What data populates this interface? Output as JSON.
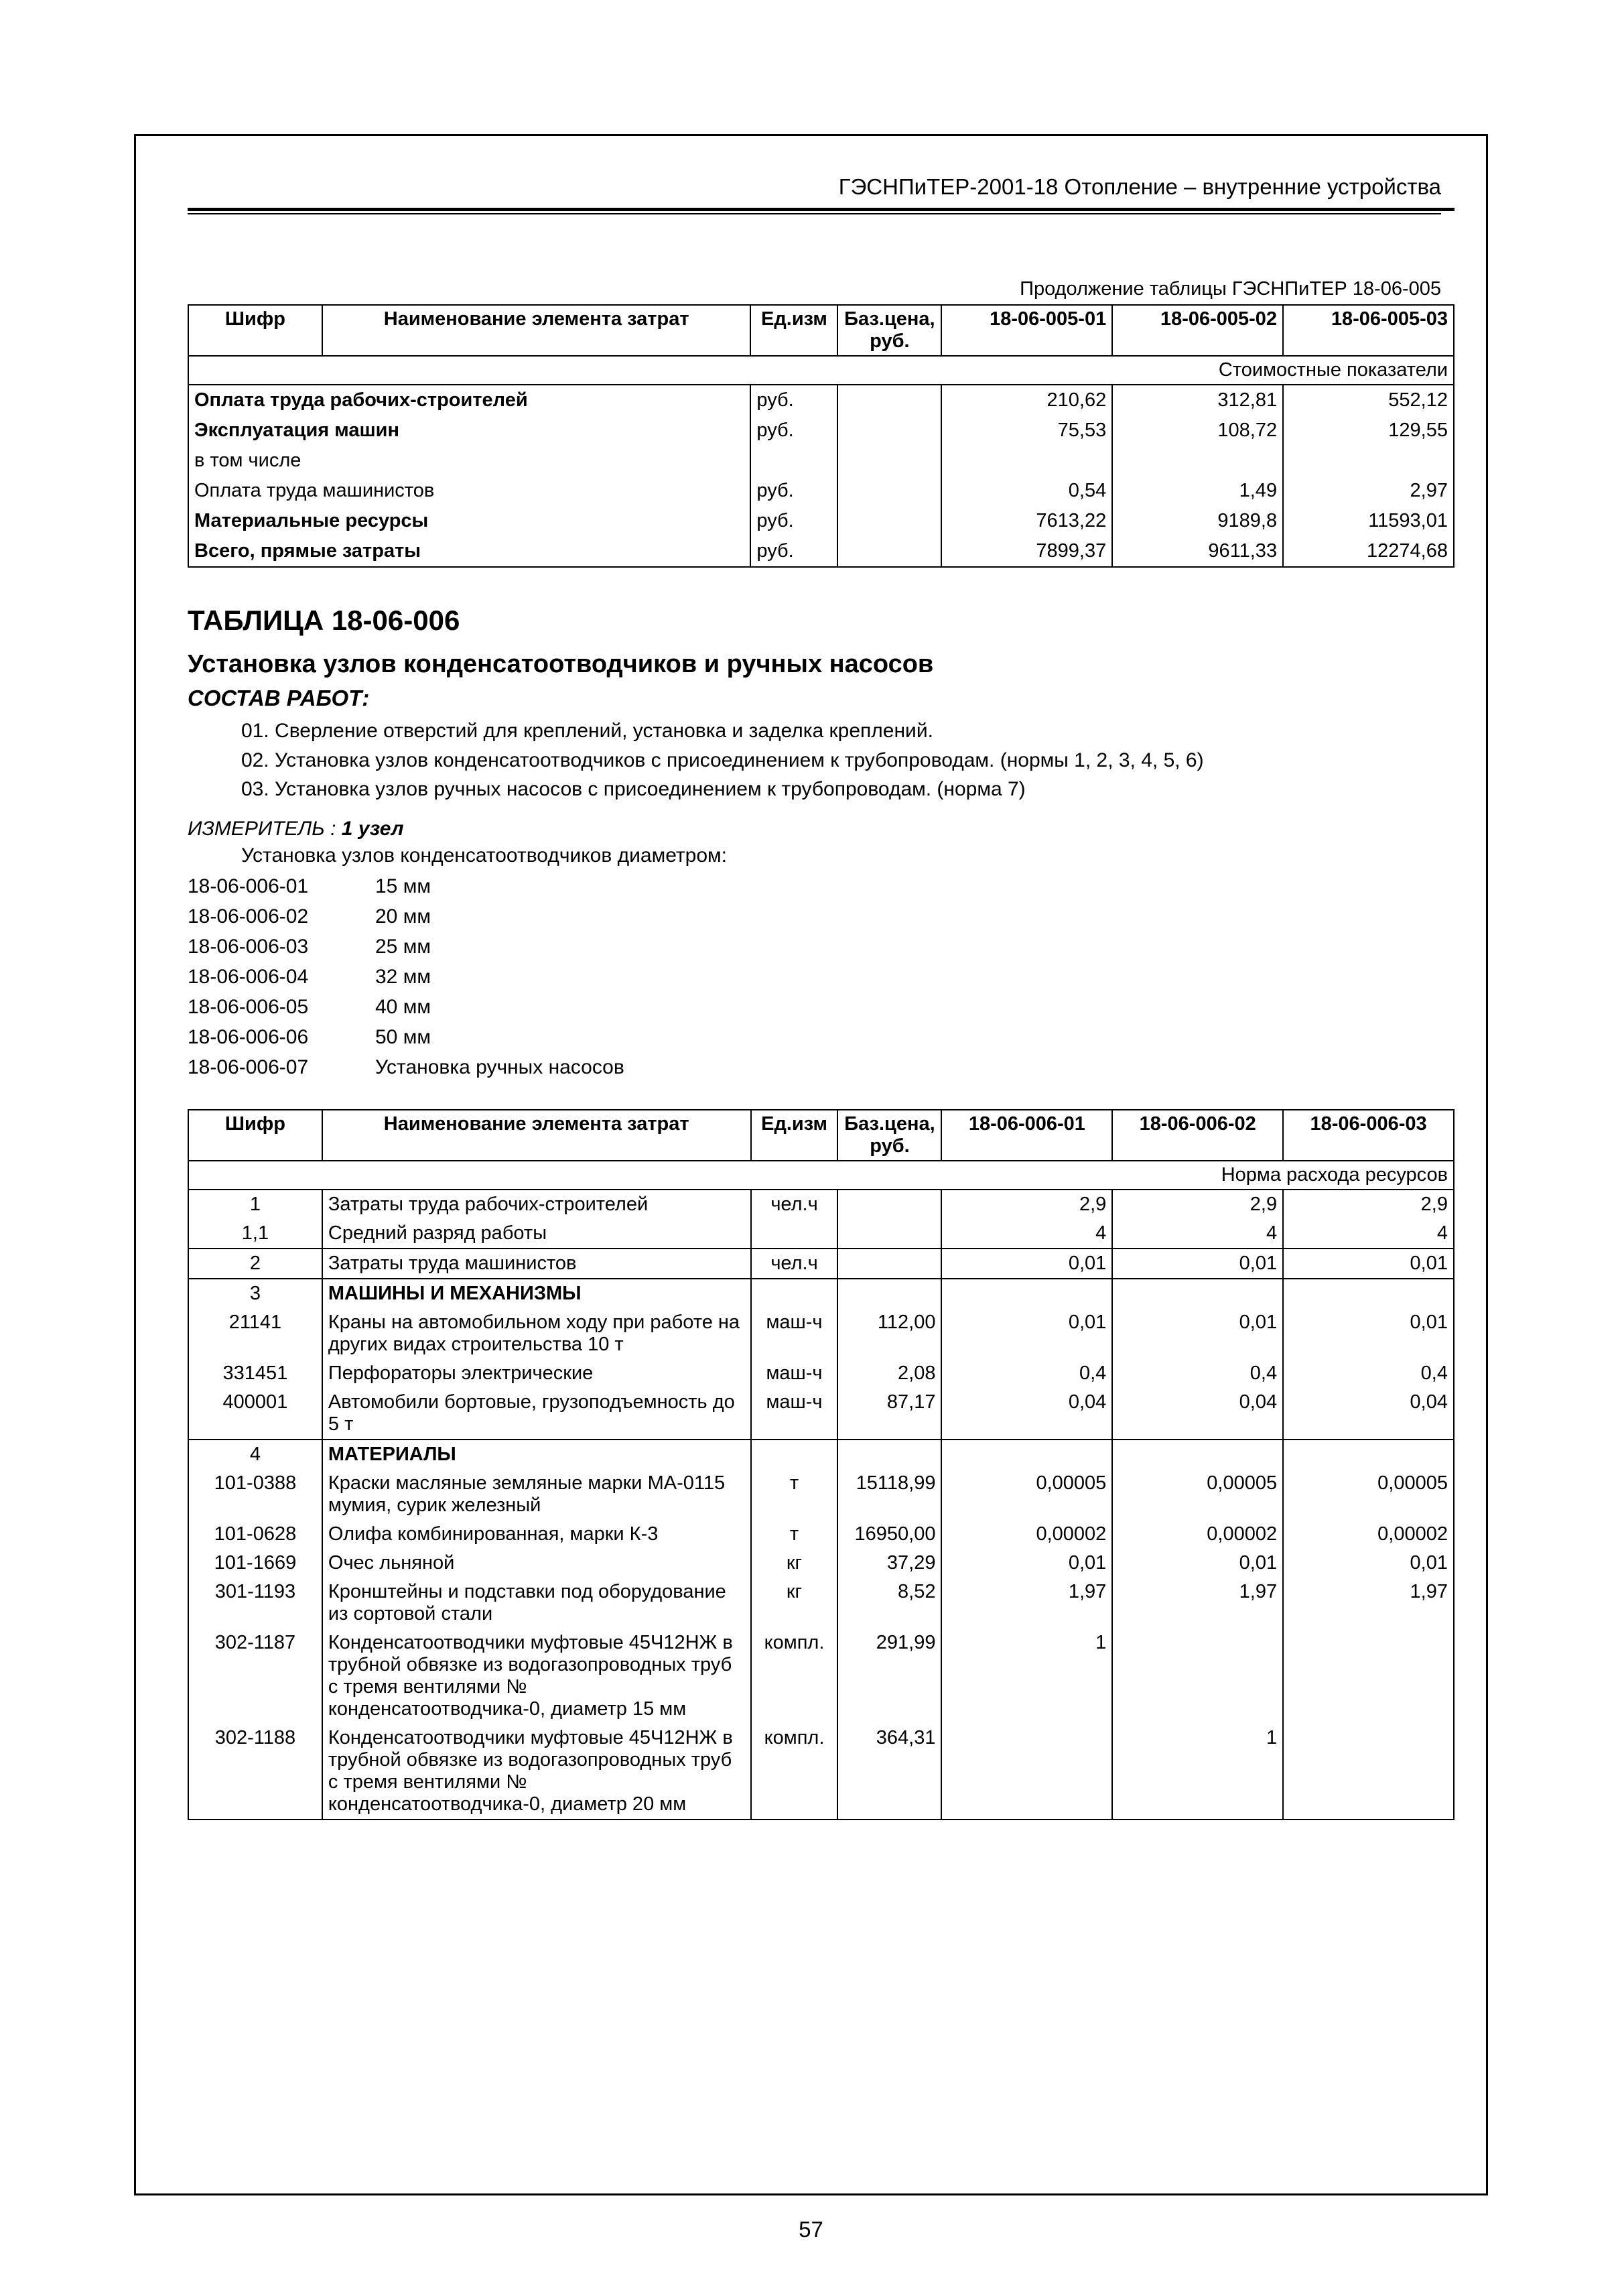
{
  "header": {
    "title": "ГЭСНПиТЕР-2001-18 Отопление – внутренние устройства"
  },
  "page_number": "57",
  "table1": {
    "continuation_label": "Продолжение таблицы ГЭСНПиТЕР 18-06-005",
    "columns": {
      "shifr": "Шифр",
      "name": "Наименование элемента затрат",
      "unit": "Ед.изм",
      "base_price": "Баз.цена, руб.",
      "c1": "18-06-005-01",
      "c2": "18-06-005-02",
      "c3": "18-06-005-03"
    },
    "subhead": "Стоимостные показатели",
    "rows": [
      {
        "label": "Оплата труда рабочих-строителей",
        "unit": "руб.",
        "v1": "210,62",
        "v2": "312,81",
        "v3": "552,12",
        "bold": true
      },
      {
        "label": "Эксплуатация машин",
        "unit": "руб.",
        "v1": "75,53",
        "v2": "108,72",
        "v3": "129,55",
        "bold": true
      },
      {
        "label": "в том числе",
        "unit": "",
        "v1": "",
        "v2": "",
        "v3": "",
        "bold": false
      },
      {
        "label": "Оплата труда машинистов",
        "unit": "руб.",
        "v1": "0,54",
        "v2": "1,49",
        "v3": "2,97",
        "bold": false
      },
      {
        "label": "Материальные ресурсы",
        "unit": "руб.",
        "v1": "7613,22",
        "v2": "9189,8",
        "v3": "11593,01",
        "bold": true
      },
      {
        "label": "Всего, прямые затраты",
        "unit": "руб.",
        "v1": "7899,37",
        "v2": "9611,33",
        "v3": "12274,68",
        "bold": true
      }
    ]
  },
  "section": {
    "table_number": "ТАБЛИЦА 18-06-006",
    "title": "Установка узлов конденсатоотводчиков и ручных насосов",
    "sostav_label": "СОСТАВ РАБОТ:",
    "works": [
      "01. Сверление отверстий для креплений, установка и заделка креплений.",
      "02. Установка узлов конденсатоотводчиков с присоединением к трубопроводам. (нормы 1, 2, 3, 4, 5, 6)",
      "03. Установка узлов ручных насосов с присоединением к трубопроводам. (норма 7)"
    ],
    "izm_label": "ИЗМЕРИТЕЛЬ :",
    "izm_value": "1 узел",
    "diam_intro": "Установка узлов конденсатоотводчиков диаметром:",
    "codes": [
      {
        "code": "18-06-006-01",
        "label": "15 мм"
      },
      {
        "code": "18-06-006-02",
        "label": "20 мм"
      },
      {
        "code": "18-06-006-03",
        "label": "25 мм"
      },
      {
        "code": "18-06-006-04",
        "label": "32 мм"
      },
      {
        "code": "18-06-006-05",
        "label": "40 мм"
      },
      {
        "code": "18-06-006-06",
        "label": "50 мм"
      },
      {
        "code": "18-06-006-07",
        "label": "Установка ручных насосов"
      }
    ]
  },
  "table2": {
    "columns": {
      "shifr": "Шифр",
      "name": "Наименование элемента затрат",
      "unit": "Ед.изм",
      "base_price": "Баз.цена, руб.",
      "c1": "18-06-006-01",
      "c2": "18-06-006-02",
      "c3": "18-06-006-03"
    },
    "subhead": "Норма расхода ресурсов",
    "rows": [
      {
        "sep": true,
        "code": "1",
        "name": "Затраты труда рабочих-строителей",
        "unit": "чел.ч",
        "bp": "",
        "v1": "2,9",
        "v2": "2,9",
        "v3": "2,9"
      },
      {
        "code": "1,1",
        "name": "Средний разряд работы",
        "unit": "",
        "bp": "",
        "v1": "4",
        "v2": "4",
        "v3": "4"
      },
      {
        "sep": true,
        "code": "2",
        "name": "Затраты труда машинистов",
        "unit": "чел.ч",
        "bp": "",
        "v1": "0,01",
        "v2": "0,01",
        "v3": "0,01"
      },
      {
        "sep": true,
        "code": "3",
        "name": "МАШИНЫ И МЕХАНИЗМЫ",
        "bold": true,
        "unit": "",
        "bp": "",
        "v1": "",
        "v2": "",
        "v3": ""
      },
      {
        "code": "21141",
        "name": "Краны на автомобильном ходу при работе на других видах строительства 10 т",
        "unit": "маш-ч",
        "bp": "112,00",
        "v1": "0,01",
        "v2": "0,01",
        "v3": "0,01"
      },
      {
        "code": "331451",
        "name": "Перфораторы электрические",
        "unit": "маш-ч",
        "bp": "2,08",
        "v1": "0,4",
        "v2": "0,4",
        "v3": "0,4"
      },
      {
        "code": "400001",
        "name": "Автомобили бортовые, грузоподъемность до 5 т",
        "unit": "маш-ч",
        "bp": "87,17",
        "v1": "0,04",
        "v2": "0,04",
        "v3": "0,04"
      },
      {
        "sep": true,
        "code": "4",
        "name": "МАТЕРИАЛЫ",
        "bold": true,
        "unit": "",
        "bp": "",
        "v1": "",
        "v2": "",
        "v3": ""
      },
      {
        "code": "101-0388",
        "name": "Краски масляные земляные марки МА-0115 мумия, сурик железный",
        "unit": "т",
        "bp": "15118,99",
        "v1": "0,00005",
        "v2": "0,00005",
        "v3": "0,00005"
      },
      {
        "code": "101-0628",
        "name": "Олифа комбинированная, марки К-3",
        "unit": "т",
        "bp": "16950,00",
        "v1": "0,00002",
        "v2": "0,00002",
        "v3": "0,00002"
      },
      {
        "code": "101-1669",
        "name": "Очес льняной",
        "unit": "кг",
        "bp": "37,29",
        "v1": "0,01",
        "v2": "0,01",
        "v3": "0,01"
      },
      {
        "code": "301-1193",
        "name": "Кронштейны и подставки под оборудование из сортовой стали",
        "unit": "кг",
        "bp": "8,52",
        "v1": "1,97",
        "v2": "1,97",
        "v3": "1,97"
      },
      {
        "code": "302-1187",
        "name": "Конденсатоотводчики муфтовые 45Ч12НЖ в трубной обвязке из водогазопроводных труб с тремя вентилями № конденсатоотводчика-0, диаметр 15 мм",
        "unit": "компл.",
        "bp": "291,99",
        "v1": "1",
        "v2": "",
        "v3": ""
      },
      {
        "last": true,
        "code": "302-1188",
        "name": "Конденсатоотводчики муфтовые 45Ч12НЖ в трубной обвязке из водогазопроводных труб с тремя вентилями № конденсатоотводчика-0, диаметр 20 мм",
        "unit": "компл.",
        "bp": "364,31",
        "v1": "",
        "v2": "1",
        "v3": ""
      }
    ]
  }
}
